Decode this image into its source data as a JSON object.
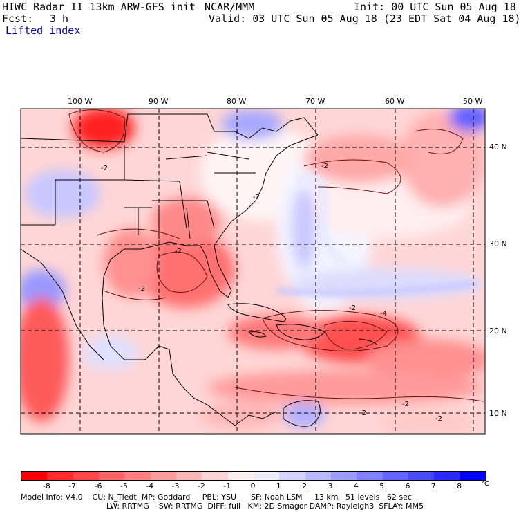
{
  "header": {
    "model_line": "HIWC Radar II 13km ARW-GFS init",
    "org": "NCAR/MMM",
    "init": "Init: 00 UTC Sun 05 Aug 18",
    "fcst_label": "Fcst:",
    "fcst_value": "3 h",
    "valid": "Valid: 03 UTC Sun 05 Aug 18 (23 EDT Sat 04 Aug 18)",
    "field": "Lifted index"
  },
  "map": {
    "lon_labels": [
      "100 W",
      "90 W",
      "80 W",
      "70 W",
      "60 W",
      "50 W"
    ],
    "lat_labels": [
      "40 N",
      "30 N",
      "20 N",
      "10 N"
    ],
    "contour_labels": [
      "-2",
      "-2",
      "-2",
      "-2",
      "-4",
      "-2",
      "-2",
      "-2",
      "-2",
      "-2"
    ]
  },
  "colorbar": {
    "labels": [
      "-8",
      "-7",
      "-6",
      "-5",
      "-4",
      "-3",
      "-2",
      "-1",
      "0",
      "1",
      "2",
      "3",
      "4",
      "5",
      "6",
      "7",
      "8"
    ],
    "unit": "°C",
    "colors": [
      "#ff0000",
      "#ff2a2a",
      "#ff4848",
      "#ff6464",
      "#ff8080",
      "#ff9c9c",
      "#ffb8b8",
      "#ffd4d4",
      "#ffeeee",
      "#eeeeff",
      "#d4d4ff",
      "#b8b8ff",
      "#9c9cff",
      "#8080ff",
      "#6464ff",
      "#4848ff",
      "#2a2aff",
      "#0000ff"
    ]
  },
  "footer": {
    "line1": "Model Info: V4.0    CU: N_Tiedt  MP: Goddard     PBL: YSU      SF: Noah LSM     13 km   51 levels   62 sec",
    "line2": "LW: RRTMG    SW: RRTMG  DIFF: full   KM: 2D Smagor DAMP: Rayleigh3  SFLAY: MM5"
  }
}
